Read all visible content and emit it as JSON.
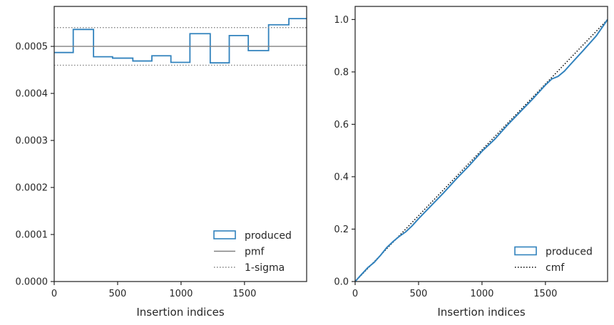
{
  "chart_data": [
    {
      "type": "line",
      "subtype": "step-histogram",
      "xlabel": "Insertion indices",
      "ylabel": "",
      "xlim": [
        0,
        1990
      ],
      "ylim": [
        0,
        0.000585
      ],
      "xticks": [
        0,
        500,
        1000,
        1500
      ],
      "xtick_labels": [
        "0",
        "500",
        "1000",
        "1500"
      ],
      "yticks": [
        0,
        0.0001,
        0.0002,
        0.0003,
        0.0004,
        0.0005
      ],
      "ytick_labels": [
        "0.0000",
        "0.0001",
        "0.0002",
        "0.0003",
        "0.0004",
        "0.0005"
      ],
      "grid": false,
      "legend_position": "lower right",
      "legend": [
        {
          "label": "produced",
          "style": "patch",
          "color": "#3182bd"
        },
        {
          "label": "pmf",
          "style": "solid",
          "color": "#808080"
        },
        {
          "label": "1-sigma",
          "style": "dotted",
          "color": "#808080"
        }
      ],
      "series": [
        {
          "name": "produced",
          "color": "#3182bd",
          "bin_edges": [
            0,
            150,
            310,
            460,
            620,
            770,
            920,
            1070,
            1230,
            1380,
            1530,
            1690,
            1850,
            1990
          ],
          "values": [
            0.000487,
            0.000536,
            0.000478,
            0.000475,
            0.000469,
            0.00048,
            0.000466,
            0.000527,
            0.000465,
            0.000523,
            0.000491,
            0.000546,
            0.000559
          ]
        },
        {
          "name": "pmf",
          "color": "#808080",
          "y": 0.0005
        },
        {
          "name": "1-sigma",
          "color": "#808080",
          "y_values": [
            0.00054,
            0.00046
          ]
        }
      ]
    },
    {
      "type": "line",
      "xlabel": "Insertion indices",
      "ylabel": "",
      "xlim": [
        0,
        1990
      ],
      "ylim": [
        0,
        1.05
      ],
      "xticks": [
        0,
        500,
        1000,
        1500
      ],
      "xtick_labels": [
        "0",
        "500",
        "1000",
        "1500"
      ],
      "yticks": [
        0,
        0.2,
        0.4,
        0.6,
        0.8,
        1.0
      ],
      "ytick_labels": [
        "0.0",
        "0.2",
        "0.4",
        "0.6",
        "0.8",
        "1.0"
      ],
      "grid": false,
      "legend_position": "lower right",
      "legend": [
        {
          "label": "produced",
          "style": "patch",
          "color": "#3182bd"
        },
        {
          "label": "cmf",
          "style": "dotted",
          "color": "#000000"
        }
      ],
      "series": [
        {
          "name": "produced",
          "color": "#3182bd",
          "x": [
            0,
            50,
            100,
            150,
            200,
            250,
            300,
            350,
            400,
            450,
            500,
            600,
            700,
            800,
            900,
            1000,
            1100,
            1200,
            1300,
            1400,
            1500,
            1550,
            1600,
            1650,
            1700,
            1800,
            1900,
            1990
          ],
          "y": [
            0,
            0.027,
            0.053,
            0.073,
            0.1,
            0.13,
            0.153,
            0.173,
            0.19,
            0.213,
            0.24,
            0.29,
            0.34,
            0.393,
            0.443,
            0.497,
            0.543,
            0.597,
            0.647,
            0.697,
            0.75,
            0.773,
            0.783,
            0.803,
            0.83,
            0.883,
            0.937,
            1.0
          ]
        },
        {
          "name": "cmf",
          "color": "#000000",
          "x": [
            0,
            1990
          ],
          "y": [
            0,
            1.0
          ]
        }
      ]
    }
  ]
}
